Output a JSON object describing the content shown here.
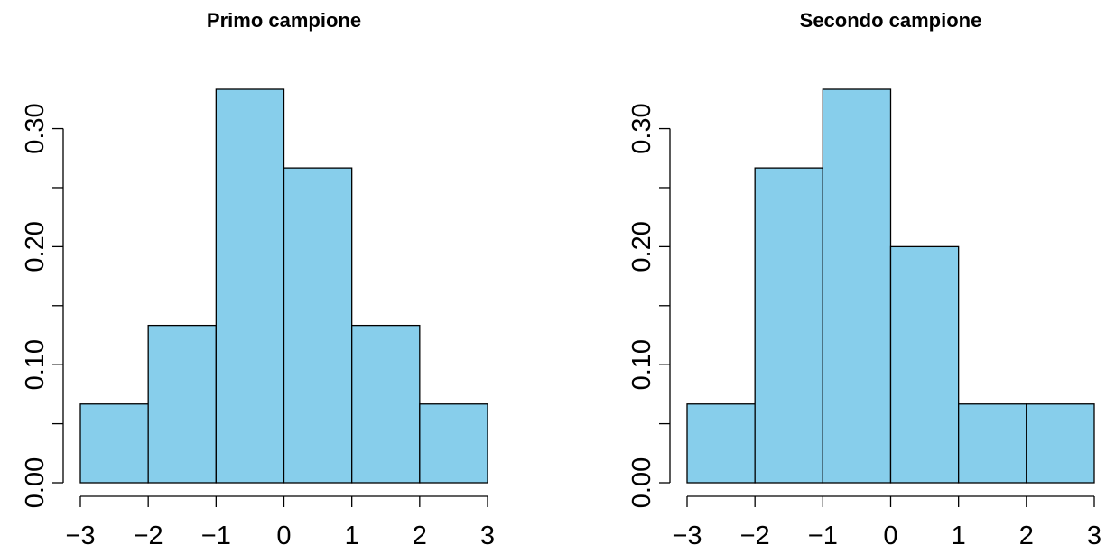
{
  "chart_data": [
    {
      "type": "histogram",
      "title": "Primo campione",
      "bins": [
        -3,
        -2,
        -1,
        0,
        1,
        2,
        3
      ],
      "values": [
        0.0667,
        0.1333,
        0.3333,
        0.2667,
        0.1333,
        0.0667
      ],
      "color": "#87ceeb",
      "xlim": [
        -3,
        3
      ],
      "xticks": [
        {
          "value": -3,
          "label": "−3"
        },
        {
          "value": -2,
          "label": "−2"
        },
        {
          "value": -1,
          "label": "−1"
        },
        0,
        1,
        2,
        3
      ],
      "ylim": [
        0,
        0.3333
      ],
      "yticks": [
        {
          "value": 0,
          "label": "0.00"
        },
        {
          "value": 0.1,
          "label": "0.10"
        },
        {
          "value": 0.2,
          "label": "0.20"
        },
        {
          "value": 0.3,
          "label": "0.30"
        }
      ],
      "yminor_ticks": [
        0.05,
        0.15,
        0.25
      ]
    },
    {
      "type": "histogram",
      "title": "Secondo campione",
      "bins": [
        -3,
        -2,
        -1,
        0,
        1,
        2,
        3
      ],
      "values": [
        0.0667,
        0.2667,
        0.3333,
        0.2,
        0.0667,
        0.0667
      ],
      "color": "#87ceeb",
      "xlim": [
        -3,
        3
      ],
      "xticks": [
        {
          "value": -3,
          "label": "−3"
        },
        {
          "value": -2,
          "label": "−2"
        },
        {
          "value": -1,
          "label": "−1"
        },
        0,
        1,
        2,
        3
      ],
      "ylim": [
        0,
        0.3333
      ],
      "yticks": [
        {
          "value": 0,
          "label": "0.00"
        },
        {
          "value": 0.1,
          "label": "0.10"
        },
        {
          "value": 0.2,
          "label": "0.20"
        },
        {
          "value": 0.3,
          "label": "0.30"
        }
      ],
      "yminor_ticks": [
        0.05,
        0.15,
        0.25
      ]
    }
  ]
}
